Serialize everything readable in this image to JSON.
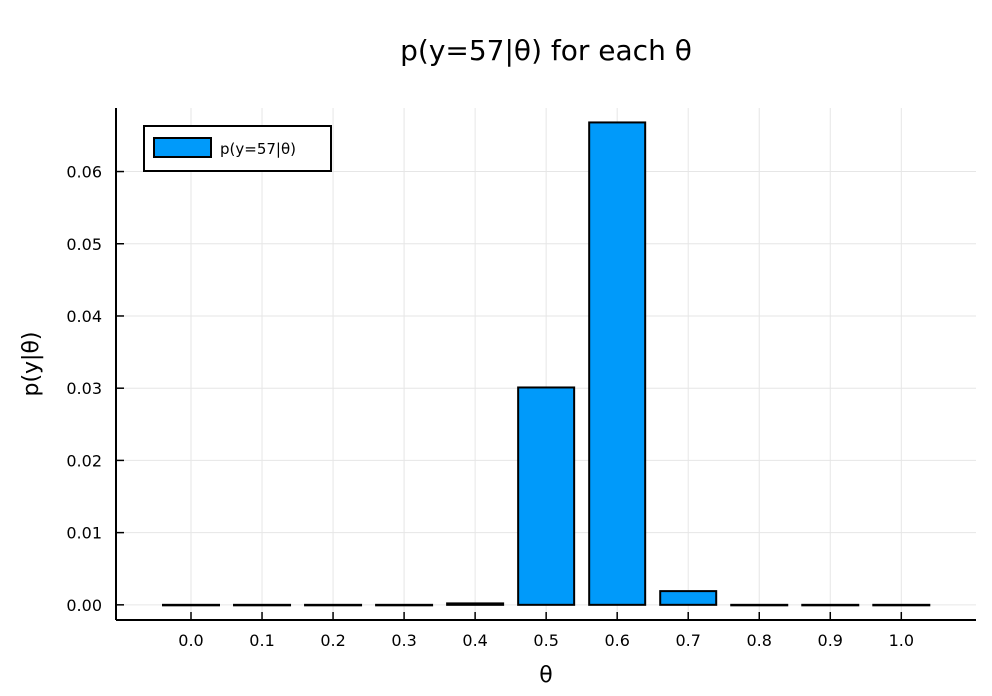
{
  "chart_data": {
    "type": "bar",
    "title": "p(y=57|θ) for each θ",
    "xlabel": "θ",
    "ylabel": "p(y|θ)",
    "categories": [
      "0.0",
      "0.1",
      "0.2",
      "0.3",
      "0.4",
      "0.5",
      "0.6",
      "0.7",
      "0.8",
      "0.9",
      "1.0"
    ],
    "series": [
      {
        "name": "p(y=57|θ)",
        "color": "#009AFA",
        "values": [
          0.0,
          0.0,
          0.0,
          0.0,
          0.0002,
          0.0301,
          0.0668,
          0.0019,
          0.0,
          0.0,
          0.0
        ]
      }
    ],
    "ylim": [
      -0.0021,
      0.0688
    ],
    "yticks": [
      "0.00",
      "0.01",
      "0.02",
      "0.03",
      "0.04",
      "0.05",
      "0.06"
    ],
    "grid": true,
    "legend_position": "top-left"
  }
}
